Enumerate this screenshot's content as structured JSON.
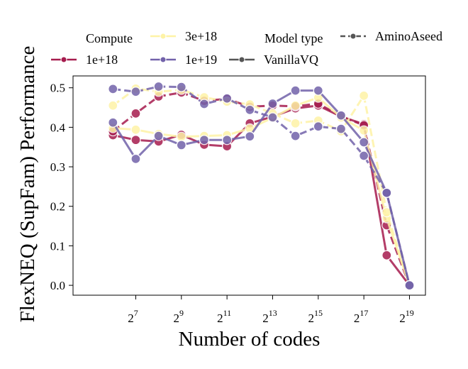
{
  "chart_data": {
    "type": "line",
    "xlabel": "Number of codes",
    "ylabel": "FlexNEQ (SupFam) Performance",
    "xscale": "log2",
    "xlim_log2": [
      4.25,
      19.7
    ],
    "ylim": [
      -0.025,
      0.53
    ],
    "yticks": [
      0.0,
      0.1,
      0.2,
      0.3,
      0.4,
      0.5
    ],
    "ytick_labels": [
      "0.0",
      "0.1",
      "0.2",
      "0.3",
      "0.4",
      "0.5"
    ],
    "xticks_log2": [
      7,
      9,
      11,
      13,
      15,
      17,
      19
    ],
    "xtick_base": "2",
    "xtick_exponents": [
      "7",
      "9",
      "11",
      "13",
      "15",
      "17",
      "19"
    ],
    "colors": {
      "1e+18": "#a61c4e",
      "3e+18": "#fef3a6",
      "1e+19": "#7262aa"
    },
    "legend": {
      "compute_title": "Compute",
      "model_title": "Model type",
      "compute_items": [
        {
          "label": "1e+18",
          "color": "#a61c4e"
        },
        {
          "label": "3e+18",
          "color": "#fef3a6"
        },
        {
          "label": "1e+19",
          "color": "#7262aa"
        }
      ],
      "model_items": [
        {
          "label": "AminoAseed",
          "dash": "dashed",
          "color": "#555555"
        },
        {
          "label": "VanillaVQ",
          "dash": "solid",
          "color": "#555555"
        }
      ]
    },
    "series": [
      {
        "name": "1e+18 AminoAseed",
        "compute": "1e+18",
        "model": "AminoAseed",
        "x_log2": [
          6,
          7,
          8,
          9,
          10,
          11,
          12,
          13,
          14,
          15,
          16,
          17,
          18,
          19
        ],
        "values": [
          0.39,
          0.435,
          0.478,
          0.488,
          0.467,
          0.472,
          0.452,
          0.455,
          0.453,
          0.46,
          0.428,
          0.405,
          0.152,
          0.0
        ]
      },
      {
        "name": "1e+18 VanillaVQ",
        "compute": "1e+18",
        "model": "VanillaVQ",
        "x_log2": [
          6,
          7,
          8,
          9,
          10,
          11,
          12,
          13,
          14,
          15,
          16,
          17,
          18,
          19
        ],
        "values": [
          0.38,
          0.368,
          0.364,
          0.381,
          0.356,
          0.352,
          0.41,
          0.427,
          0.448,
          0.455,
          0.427,
          0.408,
          0.076,
          0.0
        ]
      },
      {
        "name": "3e+18 AminoAseed",
        "compute": "3e+18",
        "model": "AminoAseed",
        "x_log2": [
          6,
          7,
          8,
          9,
          10,
          11,
          12,
          13,
          14,
          15,
          16,
          17,
          18,
          19
        ],
        "values": [
          0.455,
          0.498,
          0.49,
          0.495,
          0.476,
          0.465,
          0.458,
          0.435,
          0.41,
          0.417,
          0.39,
          0.48,
          0.185,
          0.0
        ]
      },
      {
        "name": "3e+18 VanillaVQ",
        "compute": "3e+18",
        "model": "VanillaVQ",
        "x_log2": [
          6,
          7,
          8,
          9,
          10,
          11,
          12,
          13,
          14,
          15,
          16,
          17,
          18,
          19
        ],
        "values": [
          0.398,
          0.394,
          0.383,
          0.376,
          0.378,
          0.38,
          0.397,
          0.424,
          0.455,
          0.475,
          0.425,
          0.392,
          0.17,
          0.0
        ]
      },
      {
        "name": "1e+19 AminoAseed",
        "compute": "1e+19",
        "model": "AminoAseed",
        "x_log2": [
          6,
          7,
          8,
          9,
          10,
          11,
          12,
          13,
          14,
          15,
          16,
          17,
          18,
          19
        ],
        "values": [
          0.497,
          0.49,
          0.503,
          0.502,
          0.459,
          0.473,
          0.444,
          0.425,
          0.378,
          0.402,
          0.396,
          0.328,
          0.234,
          0.0
        ]
      },
      {
        "name": "1e+19 VanillaVQ",
        "compute": "1e+19",
        "model": "VanillaVQ",
        "x_log2": [
          6,
          7,
          8,
          9,
          10,
          11,
          12,
          13,
          14,
          15,
          16,
          17,
          18,
          19
        ],
        "values": [
          0.412,
          0.32,
          0.378,
          0.355,
          0.368,
          0.368,
          0.377,
          0.46,
          0.493,
          0.493,
          0.43,
          0.362,
          0.234,
          0.0
        ]
      }
    ]
  }
}
